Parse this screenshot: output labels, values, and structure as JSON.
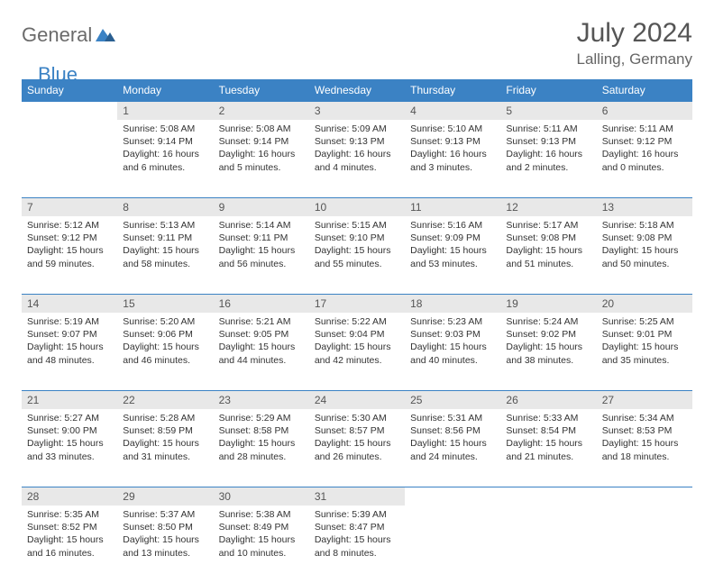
{
  "logo": {
    "part1": "General",
    "part2": "Blue"
  },
  "header": {
    "title": "July 2024",
    "location": "Lalling, Germany"
  },
  "colors": {
    "accent": "#3b82c4",
    "header_text": "#ffffff",
    "daynum_bg": "#e8e8e8",
    "body_text": "#333333",
    "logo_gray": "#6b6b6b"
  },
  "weekdays": [
    "Sunday",
    "Monday",
    "Tuesday",
    "Wednesday",
    "Thursday",
    "Friday",
    "Saturday"
  ],
  "weeks": [
    [
      null,
      {
        "day": "1",
        "sunrise": "Sunrise: 5:08 AM",
        "sunset": "Sunset: 9:14 PM",
        "daylight": "Daylight: 16 hours and 6 minutes."
      },
      {
        "day": "2",
        "sunrise": "Sunrise: 5:08 AM",
        "sunset": "Sunset: 9:14 PM",
        "daylight": "Daylight: 16 hours and 5 minutes."
      },
      {
        "day": "3",
        "sunrise": "Sunrise: 5:09 AM",
        "sunset": "Sunset: 9:13 PM",
        "daylight": "Daylight: 16 hours and 4 minutes."
      },
      {
        "day": "4",
        "sunrise": "Sunrise: 5:10 AM",
        "sunset": "Sunset: 9:13 PM",
        "daylight": "Daylight: 16 hours and 3 minutes."
      },
      {
        "day": "5",
        "sunrise": "Sunrise: 5:11 AM",
        "sunset": "Sunset: 9:13 PM",
        "daylight": "Daylight: 16 hours and 2 minutes."
      },
      {
        "day": "6",
        "sunrise": "Sunrise: 5:11 AM",
        "sunset": "Sunset: 9:12 PM",
        "daylight": "Daylight: 16 hours and 0 minutes."
      }
    ],
    [
      {
        "day": "7",
        "sunrise": "Sunrise: 5:12 AM",
        "sunset": "Sunset: 9:12 PM",
        "daylight": "Daylight: 15 hours and 59 minutes."
      },
      {
        "day": "8",
        "sunrise": "Sunrise: 5:13 AM",
        "sunset": "Sunset: 9:11 PM",
        "daylight": "Daylight: 15 hours and 58 minutes."
      },
      {
        "day": "9",
        "sunrise": "Sunrise: 5:14 AM",
        "sunset": "Sunset: 9:11 PM",
        "daylight": "Daylight: 15 hours and 56 minutes."
      },
      {
        "day": "10",
        "sunrise": "Sunrise: 5:15 AM",
        "sunset": "Sunset: 9:10 PM",
        "daylight": "Daylight: 15 hours and 55 minutes."
      },
      {
        "day": "11",
        "sunrise": "Sunrise: 5:16 AM",
        "sunset": "Sunset: 9:09 PM",
        "daylight": "Daylight: 15 hours and 53 minutes."
      },
      {
        "day": "12",
        "sunrise": "Sunrise: 5:17 AM",
        "sunset": "Sunset: 9:08 PM",
        "daylight": "Daylight: 15 hours and 51 minutes."
      },
      {
        "day": "13",
        "sunrise": "Sunrise: 5:18 AM",
        "sunset": "Sunset: 9:08 PM",
        "daylight": "Daylight: 15 hours and 50 minutes."
      }
    ],
    [
      {
        "day": "14",
        "sunrise": "Sunrise: 5:19 AM",
        "sunset": "Sunset: 9:07 PM",
        "daylight": "Daylight: 15 hours and 48 minutes."
      },
      {
        "day": "15",
        "sunrise": "Sunrise: 5:20 AM",
        "sunset": "Sunset: 9:06 PM",
        "daylight": "Daylight: 15 hours and 46 minutes."
      },
      {
        "day": "16",
        "sunrise": "Sunrise: 5:21 AM",
        "sunset": "Sunset: 9:05 PM",
        "daylight": "Daylight: 15 hours and 44 minutes."
      },
      {
        "day": "17",
        "sunrise": "Sunrise: 5:22 AM",
        "sunset": "Sunset: 9:04 PM",
        "daylight": "Daylight: 15 hours and 42 minutes."
      },
      {
        "day": "18",
        "sunrise": "Sunrise: 5:23 AM",
        "sunset": "Sunset: 9:03 PM",
        "daylight": "Daylight: 15 hours and 40 minutes."
      },
      {
        "day": "19",
        "sunrise": "Sunrise: 5:24 AM",
        "sunset": "Sunset: 9:02 PM",
        "daylight": "Daylight: 15 hours and 38 minutes."
      },
      {
        "day": "20",
        "sunrise": "Sunrise: 5:25 AM",
        "sunset": "Sunset: 9:01 PM",
        "daylight": "Daylight: 15 hours and 35 minutes."
      }
    ],
    [
      {
        "day": "21",
        "sunrise": "Sunrise: 5:27 AM",
        "sunset": "Sunset: 9:00 PM",
        "daylight": "Daylight: 15 hours and 33 minutes."
      },
      {
        "day": "22",
        "sunrise": "Sunrise: 5:28 AM",
        "sunset": "Sunset: 8:59 PM",
        "daylight": "Daylight: 15 hours and 31 minutes."
      },
      {
        "day": "23",
        "sunrise": "Sunrise: 5:29 AM",
        "sunset": "Sunset: 8:58 PM",
        "daylight": "Daylight: 15 hours and 28 minutes."
      },
      {
        "day": "24",
        "sunrise": "Sunrise: 5:30 AM",
        "sunset": "Sunset: 8:57 PM",
        "daylight": "Daylight: 15 hours and 26 minutes."
      },
      {
        "day": "25",
        "sunrise": "Sunrise: 5:31 AM",
        "sunset": "Sunset: 8:56 PM",
        "daylight": "Daylight: 15 hours and 24 minutes."
      },
      {
        "day": "26",
        "sunrise": "Sunrise: 5:33 AM",
        "sunset": "Sunset: 8:54 PM",
        "daylight": "Daylight: 15 hours and 21 minutes."
      },
      {
        "day": "27",
        "sunrise": "Sunrise: 5:34 AM",
        "sunset": "Sunset: 8:53 PM",
        "daylight": "Daylight: 15 hours and 18 minutes."
      }
    ],
    [
      {
        "day": "28",
        "sunrise": "Sunrise: 5:35 AM",
        "sunset": "Sunset: 8:52 PM",
        "daylight": "Daylight: 15 hours and 16 minutes."
      },
      {
        "day": "29",
        "sunrise": "Sunrise: 5:37 AM",
        "sunset": "Sunset: 8:50 PM",
        "daylight": "Daylight: 15 hours and 13 minutes."
      },
      {
        "day": "30",
        "sunrise": "Sunrise: 5:38 AM",
        "sunset": "Sunset: 8:49 PM",
        "daylight": "Daylight: 15 hours and 10 minutes."
      },
      {
        "day": "31",
        "sunrise": "Sunrise: 5:39 AM",
        "sunset": "Sunset: 8:47 PM",
        "daylight": "Daylight: 15 hours and 8 minutes."
      },
      null,
      null,
      null
    ]
  ]
}
